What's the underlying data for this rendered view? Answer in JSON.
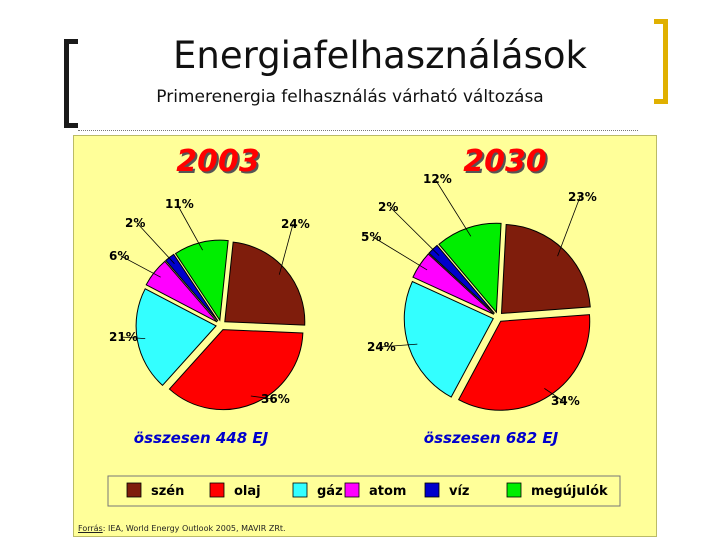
{
  "slide": {
    "title": "Energiafelhasználások",
    "subtitle": "Primerenergia felhasználás várható változása"
  },
  "colors": {
    "szén": "#7f1d0c",
    "olaj": "#ff0000",
    "gáz": "#33ffff",
    "atom": "#ff00ff",
    "víz": "#0000cc",
    "megújulók": "#00ee00",
    "panel": "#ffff99",
    "year_text": "#ff0000",
    "total_text": "#0000cc"
  },
  "chart_data": [
    {
      "type": "pie",
      "title": "2003",
      "total_label": "összesen 448 EJ",
      "slices": [
        {
          "name": "szén",
          "value": 24,
          "label": "24%"
        },
        {
          "name": "olaj",
          "value": 36,
          "label": "36%"
        },
        {
          "name": "gáz",
          "value": 21,
          "label": "21%"
        },
        {
          "name": "atom",
          "value": 6,
          "label": "6%"
        },
        {
          "name": "víz",
          "value": 2,
          "label": "2%"
        },
        {
          "name": "megújulók",
          "value": 11,
          "label": "11%"
        }
      ]
    },
    {
      "type": "pie",
      "title": "2030",
      "total_label": "összesen 682 EJ",
      "slices": [
        {
          "name": "szén",
          "value": 23,
          "label": "23%"
        },
        {
          "name": "olaj",
          "value": 34,
          "label": "34%"
        },
        {
          "name": "gáz",
          "value": 24,
          "label": "24%"
        },
        {
          "name": "atom",
          "value": 5,
          "label": "5%"
        },
        {
          "name": "víz",
          "value": 2,
          "label": "2%"
        },
        {
          "name": "megújulók",
          "value": 12,
          "label": "12%"
        }
      ]
    }
  ],
  "legend": [
    "szén",
    "olaj",
    "gáz",
    "atom",
    "víz",
    "megújulók"
  ],
  "source": {
    "prefix": "Forrás",
    "text": ": IEA, World Energy Outlook 2005, MAVIR ZRt."
  }
}
